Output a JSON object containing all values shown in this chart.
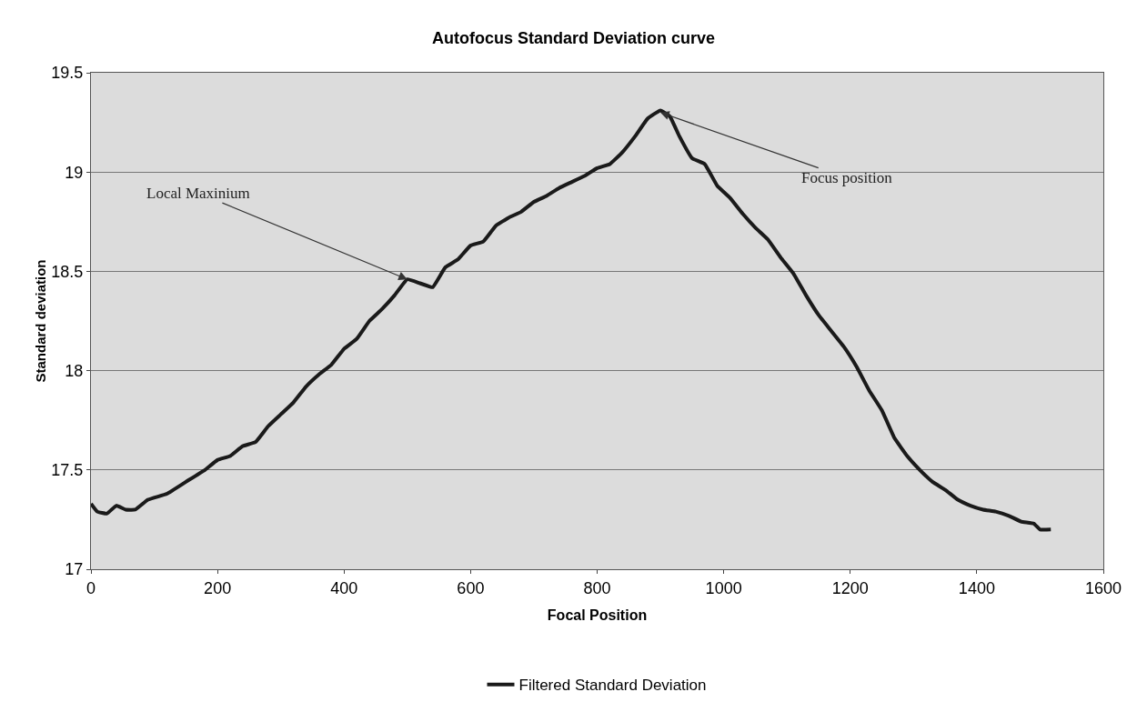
{
  "chart_data": {
    "type": "line",
    "title": "Autofocus Standard Deviation curve",
    "xlabel": "Focal Position",
    "ylabel": "Standard deviation",
    "x": [
      0,
      10,
      25,
      40,
      55,
      70,
      90,
      120,
      150,
      180,
      200,
      220,
      240,
      260,
      280,
      300,
      320,
      340,
      360,
      380,
      400,
      420,
      440,
      460,
      480,
      500,
      520,
      540,
      560,
      580,
      600,
      620,
      640,
      660,
      680,
      700,
      720,
      740,
      760,
      780,
      800,
      820,
      840,
      860,
      880,
      900,
      915,
      930,
      950,
      970,
      990,
      1010,
      1030,
      1050,
      1070,
      1090,
      1110,
      1130,
      1150,
      1170,
      1190,
      1210,
      1230,
      1250,
      1270,
      1290,
      1310,
      1330,
      1350,
      1370,
      1390,
      1410,
      1430,
      1450,
      1470,
      1490,
      1500,
      1517
    ],
    "series": [
      {
        "name": "Filtered Standard Deviation",
        "color": "#1a1a1a",
        "values": [
          17.33,
          17.29,
          17.28,
          17.32,
          17.3,
          17.3,
          17.35,
          17.38,
          17.44,
          17.5,
          17.55,
          17.57,
          17.62,
          17.64,
          17.72,
          17.78,
          17.84,
          17.92,
          17.98,
          18.03,
          18.11,
          18.16,
          18.25,
          18.31,
          18.38,
          18.46,
          18.44,
          18.42,
          18.52,
          18.56,
          18.63,
          18.65,
          18.73,
          18.77,
          18.8,
          18.85,
          18.88,
          18.92,
          18.95,
          18.98,
          19.02,
          19.04,
          19.1,
          19.18,
          19.27,
          19.31,
          19.28,
          19.18,
          19.07,
          19.04,
          18.93,
          18.87,
          18.79,
          18.72,
          18.66,
          18.57,
          18.49,
          18.38,
          18.28,
          18.2,
          18.12,
          18.02,
          17.9,
          17.8,
          17.66,
          17.57,
          17.5,
          17.44,
          17.4,
          17.35,
          17.32,
          17.3,
          17.29,
          17.27,
          17.24,
          17.23,
          17.2,
          17.2
        ]
      }
    ],
    "xlim": [
      0,
      1600
    ],
    "xticks": [
      0,
      200,
      400,
      600,
      800,
      1000,
      1200,
      1400,
      1600
    ],
    "ylim": [
      17,
      19.5
    ],
    "yticks": [
      17,
      17.5,
      18,
      18.5,
      19,
      19.5
    ],
    "grid": "y",
    "legend": "bottom",
    "annotations": [
      {
        "text": "Local Maxinium",
        "x": 500,
        "y": 18.46
      },
      {
        "text": "Focus position",
        "x": 900,
        "y": 19.3
      }
    ]
  }
}
